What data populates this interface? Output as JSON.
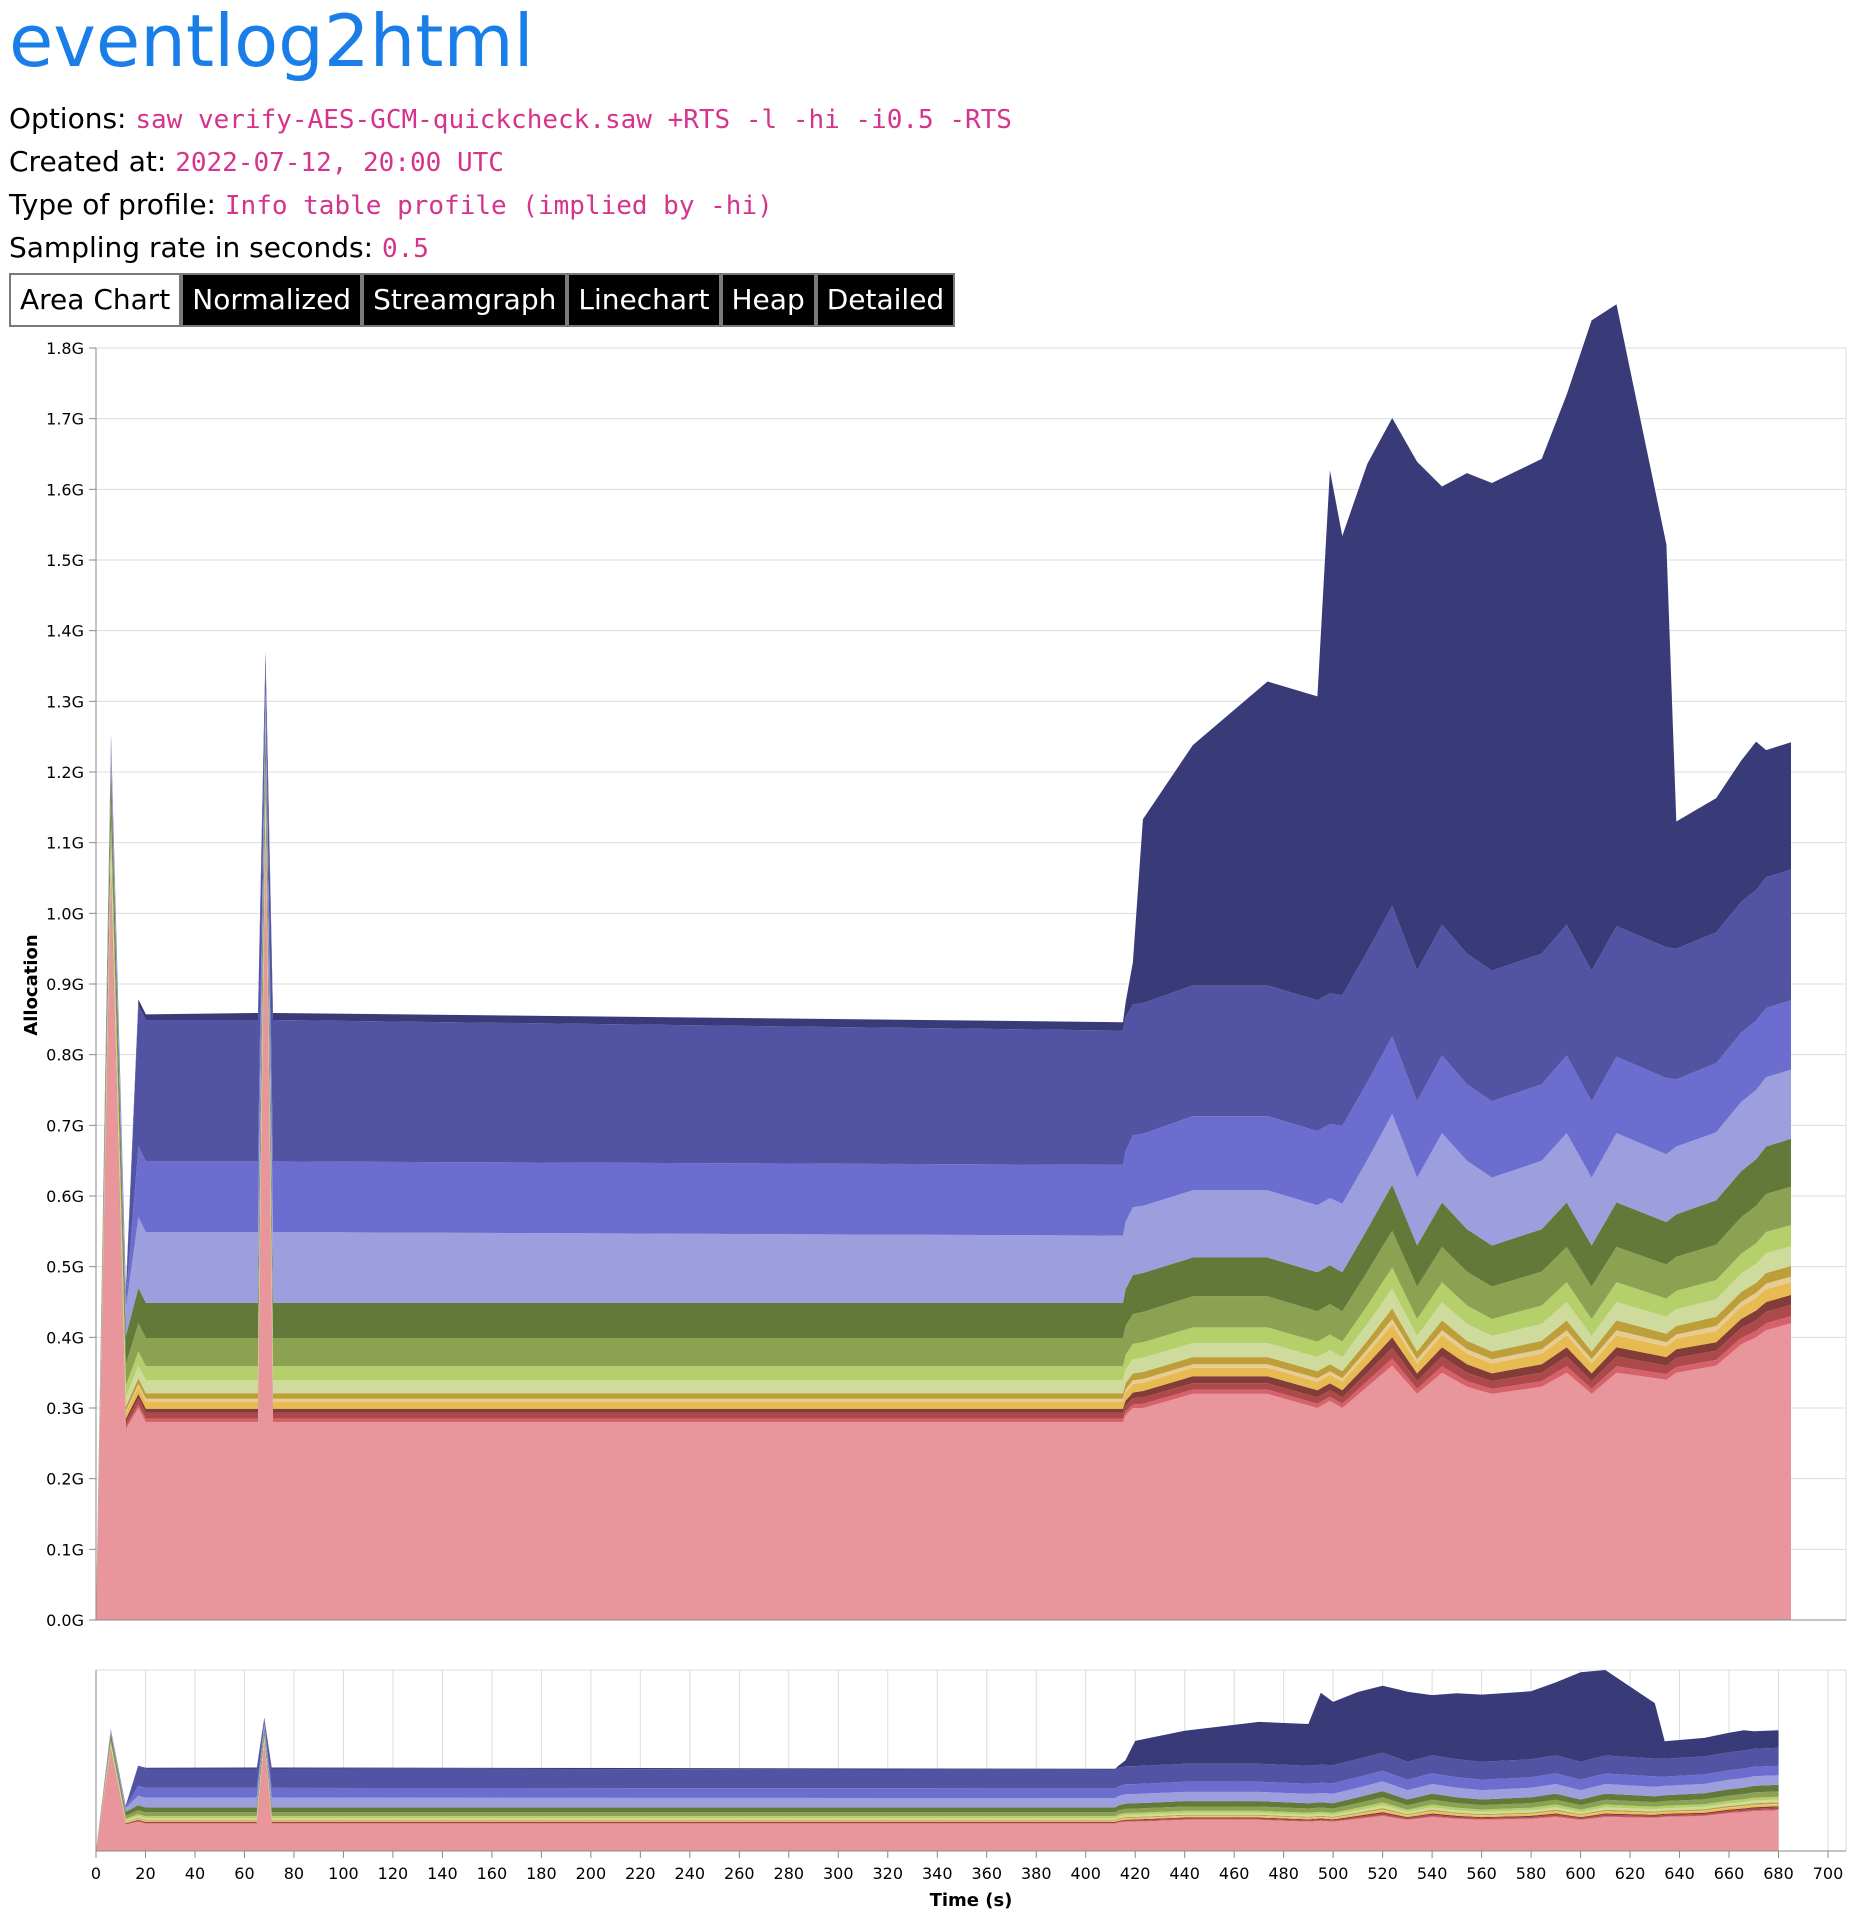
{
  "header": {
    "title": "eventlog2html",
    "options_label": "Options:",
    "options_value": "saw verify-AES-GCM-quickcheck.saw +RTS -l -hi -i0.5 -RTS",
    "created_label": "Created at:",
    "created_value": "2022-07-12, 20:00 UTC",
    "type_label": "Type of profile:",
    "type_value": "Info table profile (implied by -hi)",
    "rate_label": "Sampling rate in seconds:",
    "rate_value": "0.5"
  },
  "tabs": [
    {
      "label": "Area Chart",
      "active": true
    },
    {
      "label": "Normalized",
      "active": false
    },
    {
      "label": "Streamgraph",
      "active": false
    },
    {
      "label": "Linechart",
      "active": false
    },
    {
      "label": "Heap",
      "active": false
    },
    {
      "label": "Detailed",
      "active": false
    }
  ],
  "chart_data": {
    "type": "area",
    "stacked": true,
    "ylabel": "Allocation",
    "xlabel": "Time (s)",
    "ylim": [
      0,
      1.8
    ],
    "xlim": [
      0,
      700
    ],
    "y_ticks": [
      "0.0G",
      "0.1G",
      "0.2G",
      "0.3G",
      "0.4G",
      "0.5G",
      "0.6G",
      "0.7G",
      "0.8G",
      "0.9G",
      "1.0G",
      "1.1G",
      "1.2G",
      "1.3G",
      "1.4G",
      "1.5G",
      "1.6G",
      "1.7G",
      "1.8G"
    ],
    "x_ticks": [
      "0",
      "20",
      "40",
      "60",
      "80",
      "100",
      "120",
      "140",
      "160",
      "180",
      "200",
      "220",
      "240",
      "260",
      "280",
      "300",
      "320",
      "340",
      "360",
      "380",
      "400",
      "420",
      "440",
      "460",
      "480",
      "500",
      "520",
      "540",
      "560",
      "580",
      "600",
      "620",
      "640",
      "660",
      "680",
      "700"
    ],
    "grid": true,
    "overview_brush": true,
    "x": [
      0,
      6,
      12,
      17,
      20,
      65,
      68,
      71,
      412,
      413,
      416,
      420,
      440,
      470,
      490,
      495,
      500,
      510,
      520,
      530,
      540,
      550,
      560,
      580,
      590,
      600,
      610,
      630,
      634,
      650,
      660,
      666,
      670,
      680
    ],
    "series": [
      {
        "color": "#e8969b",
        "values": [
          0,
          1.04,
          0.27,
          0.3,
          0.28,
          0.28,
          1.1,
          0.28,
          0.28,
          0.29,
          0.3,
          0.3,
          0.32,
          0.32,
          0.3,
          0.31,
          0.3,
          0.33,
          0.36,
          0.32,
          0.35,
          0.33,
          0.32,
          0.33,
          0.35,
          0.32,
          0.35,
          0.34,
          0.35,
          0.36,
          0.39,
          0.4,
          0.41,
          0.42
        ]
      },
      {
        "color": "#d6616b",
        "values": [
          0,
          0.006,
          0.004,
          0.005,
          0.005,
          0.005,
          0.006,
          0.005,
          0.005,
          0.005,
          0.005,
          0.006,
          0.006,
          0.006,
          0.006,
          0.006,
          0.006,
          0.008,
          0.01,
          0.007,
          0.009,
          0.008,
          0.007,
          0.008,
          0.009,
          0.007,
          0.009,
          0.008,
          0.008,
          0.008,
          0.009,
          0.009,
          0.01,
          0.01
        ]
      },
      {
        "color": "#ad494a",
        "values": [
          0,
          0.008,
          0.006,
          0.008,
          0.008,
          0.008,
          0.008,
          0.008,
          0.008,
          0.008,
          0.009,
          0.009,
          0.009,
          0.009,
          0.009,
          0.009,
          0.009,
          0.012,
          0.015,
          0.011,
          0.014,
          0.012,
          0.011,
          0.012,
          0.014,
          0.011,
          0.014,
          0.012,
          0.013,
          0.013,
          0.014,
          0.015,
          0.016,
          0.016
        ]
      },
      {
        "color": "#843c39",
        "values": [
          0,
          0.006,
          0.005,
          0.007,
          0.006,
          0.006,
          0.007,
          0.006,
          0.006,
          0.007,
          0.008,
          0.009,
          0.01,
          0.01,
          0.01,
          0.01,
          0.01,
          0.012,
          0.015,
          0.011,
          0.013,
          0.012,
          0.011,
          0.012,
          0.013,
          0.011,
          0.013,
          0.012,
          0.012,
          0.012,
          0.013,
          0.014,
          0.014,
          0.014
        ]
      },
      {
        "color": "#e7ba52",
        "values": [
          0,
          0.01,
          0.008,
          0.01,
          0.01,
          0.01,
          0.01,
          0.01,
          0.01,
          0.011,
          0.012,
          0.012,
          0.012,
          0.012,
          0.012,
          0.012,
          0.012,
          0.015,
          0.018,
          0.014,
          0.017,
          0.015,
          0.014,
          0.015,
          0.017,
          0.014,
          0.017,
          0.015,
          0.015,
          0.016,
          0.017,
          0.018,
          0.018,
          0.018
        ]
      },
      {
        "color": "#e7cb94",
        "values": [
          0,
          0.004,
          0.003,
          0.004,
          0.004,
          0.004,
          0.004,
          0.004,
          0.004,
          0.005,
          0.005,
          0.005,
          0.005,
          0.005,
          0.005,
          0.005,
          0.005,
          0.006,
          0.008,
          0.006,
          0.007,
          0.006,
          0.006,
          0.006,
          0.007,
          0.006,
          0.007,
          0.006,
          0.006,
          0.007,
          0.007,
          0.007,
          0.008,
          0.008
        ]
      },
      {
        "color": "#bd9e39",
        "values": [
          0,
          0.008,
          0.006,
          0.008,
          0.008,
          0.008,
          0.008,
          0.008,
          0.008,
          0.009,
          0.01,
          0.01,
          0.01,
          0.01,
          0.01,
          0.01,
          0.01,
          0.012,
          0.015,
          0.011,
          0.014,
          0.012,
          0.011,
          0.012,
          0.014,
          0.011,
          0.014,
          0.012,
          0.012,
          0.013,
          0.014,
          0.014,
          0.015,
          0.015
        ]
      },
      {
        "color": "#cedb9c",
        "values": [
          0,
          0.018,
          0.014,
          0.018,
          0.018,
          0.018,
          0.018,
          0.018,
          0.018,
          0.019,
          0.02,
          0.02,
          0.02,
          0.02,
          0.02,
          0.02,
          0.02,
          0.024,
          0.028,
          0.022,
          0.026,
          0.024,
          0.022,
          0.024,
          0.026,
          0.022,
          0.026,
          0.024,
          0.024,
          0.025,
          0.026,
          0.027,
          0.028,
          0.028
        ]
      },
      {
        "color": "#b5cf6b",
        "values": [
          0,
          0.02,
          0.016,
          0.02,
          0.02,
          0.02,
          0.02,
          0.02,
          0.02,
          0.021,
          0.022,
          0.022,
          0.022,
          0.022,
          0.022,
          0.022,
          0.022,
          0.026,
          0.03,
          0.024,
          0.028,
          0.026,
          0.024,
          0.026,
          0.028,
          0.024,
          0.028,
          0.026,
          0.026,
          0.027,
          0.028,
          0.029,
          0.03,
          0.03
        ]
      },
      {
        "color": "#8ca252",
        "values": [
          0,
          0.04,
          0.03,
          0.04,
          0.04,
          0.04,
          0.04,
          0.04,
          0.04,
          0.041,
          0.042,
          0.043,
          0.044,
          0.044,
          0.043,
          0.043,
          0.043,
          0.048,
          0.052,
          0.046,
          0.05,
          0.048,
          0.046,
          0.048,
          0.05,
          0.046,
          0.05,
          0.048,
          0.048,
          0.05,
          0.052,
          0.053,
          0.054,
          0.054
        ]
      },
      {
        "color": "#637939",
        "values": [
          0,
          0.05,
          0.04,
          0.05,
          0.05,
          0.05,
          0.05,
          0.05,
          0.05,
          0.052,
          0.055,
          0.055,
          0.055,
          0.055,
          0.055,
          0.055,
          0.055,
          0.06,
          0.065,
          0.058,
          0.063,
          0.06,
          0.058,
          0.06,
          0.063,
          0.058,
          0.063,
          0.06,
          0.06,
          0.063,
          0.065,
          0.066,
          0.067,
          0.068
        ]
      },
      {
        "color": "#9c9ede",
        "values": [
          0,
          0.02,
          0.04,
          0.1,
          0.1,
          0.1,
          0.03,
          0.1,
          0.095,
          0.095,
          0.096,
          0.095,
          0.095,
          0.095,
          0.095,
          0.095,
          0.097,
          0.098,
          0.1,
          0.096,
          0.098,
          0.097,
          0.096,
          0.097,
          0.098,
          0.096,
          0.098,
          0.096,
          0.096,
          0.096,
          0.098,
          0.098,
          0.098,
          0.098
        ]
      },
      {
        "color": "#6b6ecf",
        "values": [
          0,
          0.01,
          0.01,
          0.1,
          0.1,
          0.1,
          0.02,
          0.1,
          0.1,
          0.1,
          0.102,
          0.102,
          0.105,
          0.105,
          0.105,
          0.105,
          0.11,
          0.11,
          0.11,
          0.108,
          0.11,
          0.108,
          0.108,
          0.108,
          0.11,
          0.108,
          0.108,
          0.108,
          0.095,
          0.098,
          0.098,
          0.098,
          0.098,
          0.098
        ]
      },
      {
        "color": "#5254a3",
        "values": [
          0,
          0.008,
          0.01,
          0.2,
          0.2,
          0.2,
          0.03,
          0.2,
          0.19,
          0.19,
          0.185,
          0.185,
          0.185,
          0.185,
          0.185,
          0.185,
          0.185,
          0.185,
          0.185,
          0.185,
          0.185,
          0.185,
          0.185,
          0.185,
          0.185,
          0.185,
          0.185,
          0.185,
          0.185,
          0.185,
          0.185,
          0.185,
          0.185,
          0.185
        ]
      },
      {
        "color": "#393b79",
        "values": [
          0,
          0.005,
          0.005,
          0.008,
          0.008,
          0.01,
          0.02,
          0.01,
          0.012,
          0.02,
          0.06,
          0.26,
          0.34,
          0.43,
          0.43,
          0.74,
          0.65,
          0.69,
          0.69,
          0.72,
          0.62,
          0.68,
          0.69,
          0.7,
          0.75,
          0.92,
          0.88,
          0.57,
          0.18,
          0.19,
          0.2,
          0.21,
          0.18,
          0.18
        ]
      }
    ]
  }
}
